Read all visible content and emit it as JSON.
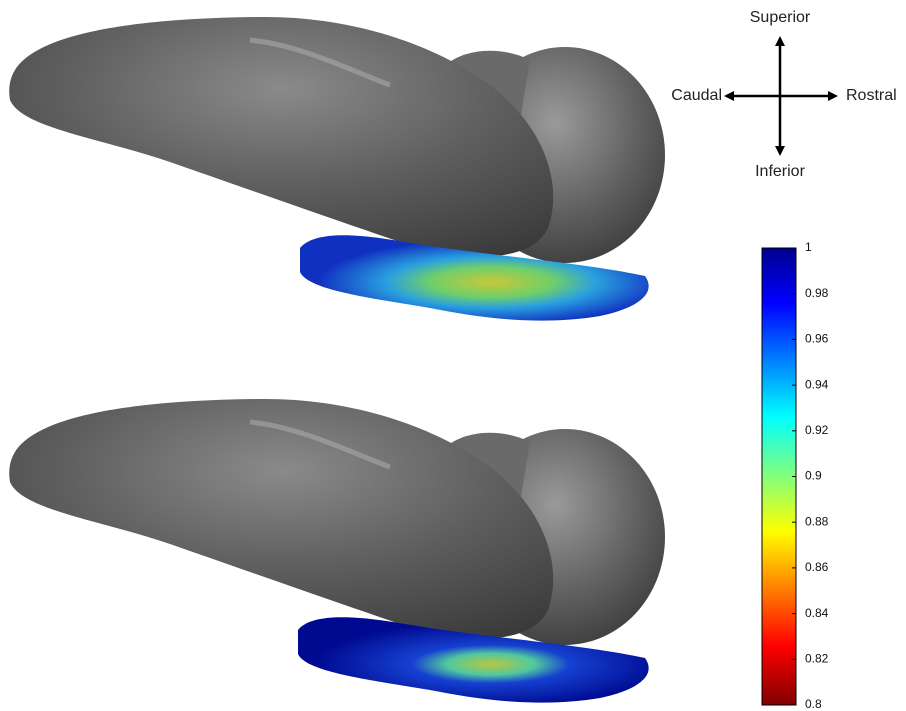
{
  "orientation": {
    "superior": "Superior",
    "inferior": "Inferior",
    "caudal": "Caudal",
    "rostral": "Rostral"
  },
  "colorbar": {
    "lim": [
      0.8,
      1
    ],
    "ticks": [
      0.8,
      0.82,
      0.84,
      0.86,
      0.88,
      0.9,
      0.92,
      0.94,
      0.96,
      0.98,
      1
    ]
  }
}
